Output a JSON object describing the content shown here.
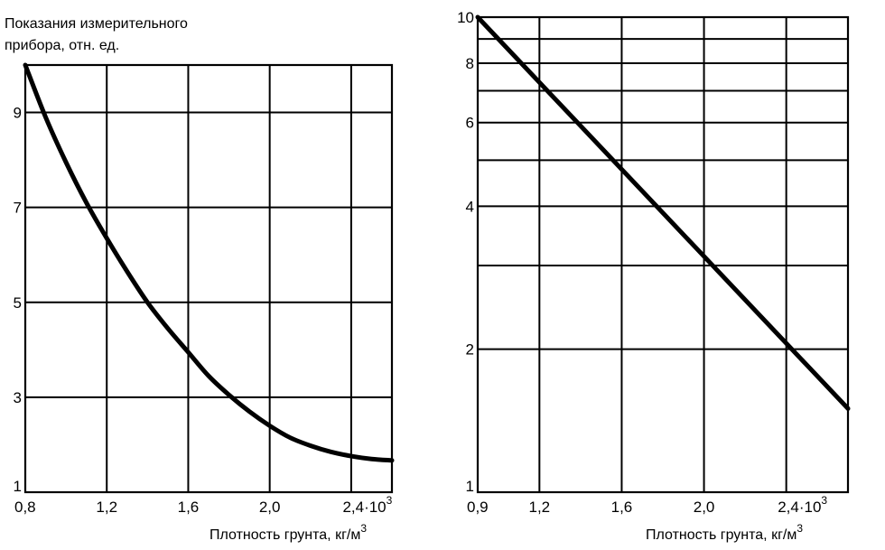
{
  "chart_data": [
    {
      "type": "line",
      "title": "",
      "ylabel": "Показания измерительного прибора, отн. ед.",
      "ylabel_lines": [
        "Показания измерительного",
        "прибора, отн. ед."
      ],
      "xlabel": "Плотность грунта, кг/м",
      "xlabel_sup": "3",
      "xlim": [
        0.8,
        2.6
      ],
      "ylim": [
        1,
        10
      ],
      "y_scale": "linear",
      "grid": true,
      "x_ticks": [
        {
          "value": 0.8,
          "label": "0,8"
        },
        {
          "value": 1.2,
          "label": "1,2"
        },
        {
          "value": 1.6,
          "label": "1,6"
        },
        {
          "value": 2.0,
          "label": "2,0"
        },
        {
          "value": 2.4,
          "label": "2,4·10",
          "sup": "3"
        }
      ],
      "x_grid": [
        1.2,
        1.6,
        2.0,
        2.4
      ],
      "y_ticks": [
        {
          "value": 1,
          "label": "1"
        },
        {
          "value": 3,
          "label": "3"
        },
        {
          "value": 5,
          "label": "5"
        },
        {
          "value": 7,
          "label": "7"
        },
        {
          "value": 9,
          "label": "9"
        }
      ],
      "y_grid": [
        3,
        5,
        7,
        9
      ],
      "series": [
        {
          "x": [
            0.8,
            0.9,
            1.0,
            1.1,
            1.2,
            1.3,
            1.4,
            1.5,
            1.6,
            1.7,
            1.8,
            1.9,
            2.0,
            2.1,
            2.2,
            2.3,
            2.4,
            2.5,
            2.6
          ],
          "y": [
            10.0,
            8.9,
            7.95,
            7.1,
            6.35,
            5.65,
            5.0,
            4.45,
            3.95,
            3.45,
            3.05,
            2.7,
            2.4,
            2.15,
            1.98,
            1.85,
            1.76,
            1.7,
            1.67
          ]
        }
      ]
    },
    {
      "type": "line",
      "title": "",
      "ylabel": "",
      "xlabel": "Плотность грунта, кг/м",
      "xlabel_sup": "3",
      "xlim": [
        0.9,
        2.7
      ],
      "ylim": [
        1,
        10
      ],
      "y_scale": "log",
      "grid": true,
      "x_ticks": [
        {
          "value": 0.9,
          "label": "0,9"
        },
        {
          "value": 1.2,
          "label": "1,2"
        },
        {
          "value": 1.6,
          "label": "1,6"
        },
        {
          "value": 2.0,
          "label": "2,0"
        },
        {
          "value": 2.4,
          "label": "2,4·10",
          "sup": "3"
        }
      ],
      "x_grid": [
        1.2,
        1.6,
        2.0,
        2.4
      ],
      "y_ticks": [
        {
          "value": 1,
          "label": "1"
        },
        {
          "value": 2,
          "label": "2"
        },
        {
          "value": 4,
          "label": "4"
        },
        {
          "value": 6,
          "label": "6"
        },
        {
          "value": 8,
          "label": "8"
        },
        {
          "value": 10,
          "label": "10"
        }
      ],
      "y_grid": [
        2,
        3,
        4,
        5,
        6,
        7,
        8,
        9
      ],
      "series": [
        {
          "x": [
            0.9,
            2.7
          ],
          "y": [
            10.0,
            1.5
          ]
        }
      ]
    }
  ]
}
